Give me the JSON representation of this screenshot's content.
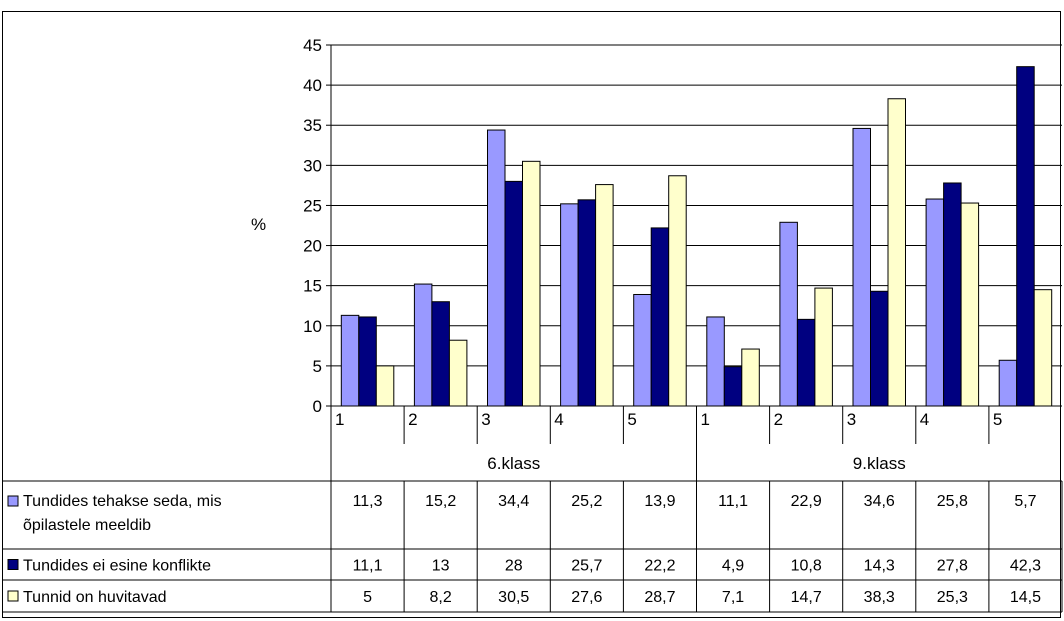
{
  "chart_data": {
    "type": "bar",
    "ylabel": "%",
    "ylim": [
      0,
      45
    ],
    "yticks": [
      0,
      5,
      10,
      15,
      20,
      25,
      30,
      35,
      40,
      45
    ],
    "grid": true,
    "groups": [
      {
        "label": "6.klass",
        "categories": [
          "1",
          "2",
          "3",
          "4",
          "5"
        ]
      },
      {
        "label": "9.klass",
        "categories": [
          "1",
          "2",
          "3",
          "4",
          "5"
        ]
      }
    ],
    "series": [
      {
        "name": "Tundides tehakse seda, mis õpilastele meeldib",
        "name_lines": [
          "Tundides tehakse seda, mis",
          "õpilastele meeldib"
        ],
        "color": "#9999ff",
        "values": [
          11.3,
          15.2,
          34.4,
          25.2,
          13.9,
          11.1,
          22.9,
          34.6,
          25.8,
          5.7
        ],
        "labels": [
          "11,3",
          "15,2",
          "34,4",
          "25,2",
          "13,9",
          "11,1",
          "22,9",
          "34,6",
          "25,8",
          "5,7"
        ]
      },
      {
        "name": "Tundides ei esine konflikte",
        "name_lines": [
          "Tundides ei esine konflikte"
        ],
        "color": "#000080",
        "values": [
          11.1,
          13,
          28,
          25.7,
          22.2,
          4.9,
          10.8,
          14.3,
          27.8,
          42.3
        ],
        "labels": [
          "11,1",
          "13",
          "28",
          "25,7",
          "22,2",
          "4,9",
          "10,8",
          "14,3",
          "27,8",
          "42,3"
        ]
      },
      {
        "name": "Tunnid on huvitavad",
        "name_lines": [
          "Tunnid on huvitavad"
        ],
        "color": "#ffffcc",
        "values": [
          5,
          8.2,
          30.5,
          27.6,
          28.7,
          7.1,
          14.7,
          38.3,
          25.3,
          14.5
        ],
        "labels": [
          "5",
          "8,2",
          "30,5",
          "27,6",
          "28,7",
          "7,1",
          "14,7",
          "38,3",
          "25,3",
          "14,5"
        ]
      }
    ]
  }
}
